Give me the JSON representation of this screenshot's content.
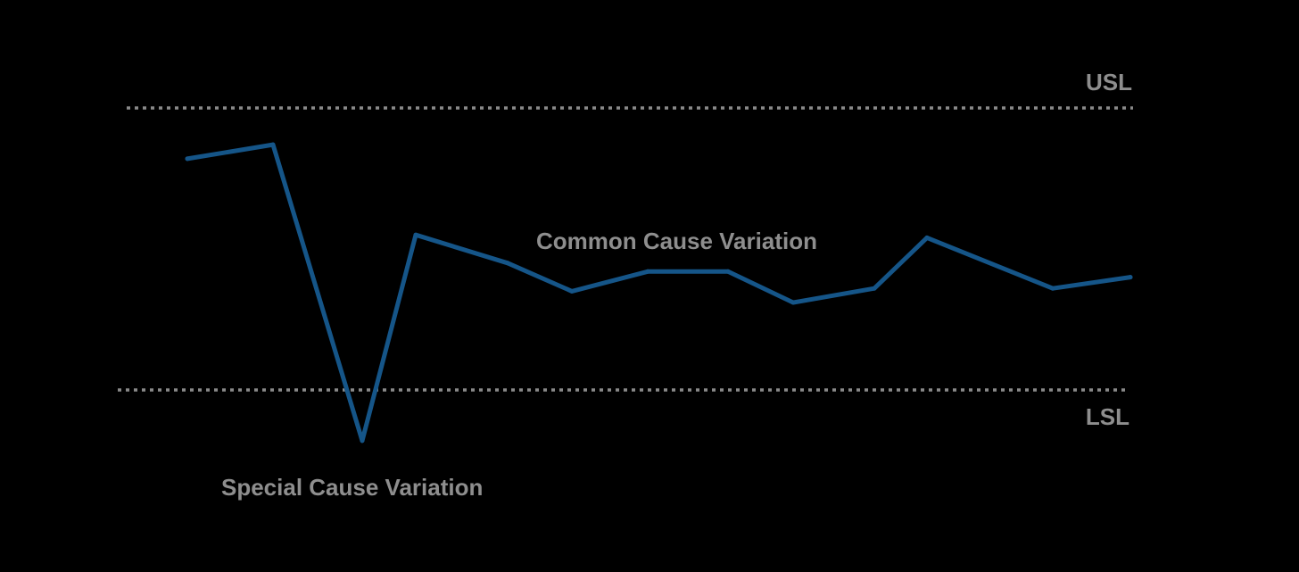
{
  "chart_data": {
    "type": "line",
    "title": "",
    "xlabel": "",
    "ylabel": "",
    "grid": false,
    "x": [
      1,
      2,
      3,
      4,
      5,
      6,
      7,
      8,
      9,
      10,
      11,
      12,
      13,
      14
    ],
    "series": [
      {
        "values": [
          82,
          87,
          -18,
          55,
          45,
          35,
          42,
          42,
          31,
          36,
          54,
          36,
          40,
          45
        ],
        "color": "#155588"
      }
    ],
    "ylim": [
      -30,
      130
    ],
    "limits": {
      "usl": {
        "label": "USL",
        "value": 100
      },
      "lsl": {
        "label": "LSL",
        "value": 0
      }
    },
    "annotations": {
      "common": "Common Cause Variation",
      "special": "Special Cause Variation"
    }
  }
}
